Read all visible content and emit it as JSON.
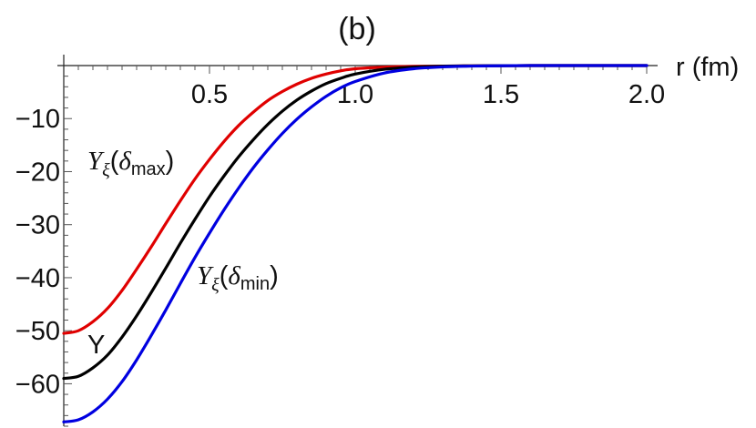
{
  "chart_data": {
    "type": "line",
    "title": "(b)",
    "xlabel": "r (fm)",
    "ylabel": "",
    "xlim": [
      0,
      2.0
    ],
    "ylim": [
      -68,
      0
    ],
    "x_ticks": [
      0.5,
      1.0,
      1.5,
      2.0
    ],
    "x_tick_labels": [
      "0.5",
      "1.0",
      "1.5",
      "2.0"
    ],
    "y_ticks": [
      -10,
      -20,
      -30,
      -40,
      -50,
      -60
    ],
    "y_tick_labels": [
      "−10",
      "−20",
      "−30",
      "−40",
      "−50",
      "−60"
    ],
    "grid": false,
    "legend": "none",
    "series": [
      {
        "name": "Yξ(δmax)",
        "color": "#e00000",
        "x": [
          0,
          0.05,
          0.1,
          0.15,
          0.2,
          0.25,
          0.3,
          0.35,
          0.4,
          0.45,
          0.5,
          0.55,
          0.6,
          0.65,
          0.7,
          0.75,
          0.8,
          0.85,
          0.9,
          0.95,
          1.0,
          1.1,
          1.2,
          1.3,
          1.4,
          1.5,
          1.6,
          1.7,
          1.8,
          1.9,
          2.0
        ],
        "y": [
          -50.5,
          -50.0,
          -48.3,
          -45.8,
          -42.4,
          -38.4,
          -34.2,
          -29.8,
          -25.5,
          -21.4,
          -17.7,
          -14.3,
          -11.3,
          -8.8,
          -6.6,
          -4.9,
          -3.5,
          -2.4,
          -1.6,
          -1.0,
          -0.6,
          -0.3,
          -0.15,
          -0.1,
          -0.05,
          -0.02,
          0,
          0,
          0,
          0,
          0
        ]
      },
      {
        "name": "Y",
        "color": "#000000",
        "x": [
          0,
          0.05,
          0.1,
          0.15,
          0.2,
          0.25,
          0.3,
          0.35,
          0.4,
          0.45,
          0.5,
          0.55,
          0.6,
          0.65,
          0.7,
          0.75,
          0.8,
          0.85,
          0.9,
          0.95,
          1.0,
          1.1,
          1.2,
          1.3,
          1.4,
          1.5,
          1.6,
          1.7,
          1.8,
          1.9,
          2.0
        ],
        "y": [
          -59.0,
          -58.6,
          -57.0,
          -54.6,
          -51.2,
          -47.2,
          -42.8,
          -38.2,
          -33.5,
          -29.0,
          -24.7,
          -20.8,
          -17.2,
          -14.0,
          -11.1,
          -8.6,
          -6.5,
          -4.8,
          -3.4,
          -2.4,
          -1.6,
          -0.7,
          -0.3,
          -0.12,
          -0.05,
          -0.02,
          0,
          0,
          0,
          0,
          0
        ]
      },
      {
        "name": "Yξ(δmin)",
        "color": "#0000e0",
        "x": [
          0,
          0.05,
          0.1,
          0.15,
          0.2,
          0.25,
          0.3,
          0.35,
          0.4,
          0.45,
          0.5,
          0.55,
          0.6,
          0.65,
          0.7,
          0.75,
          0.8,
          0.85,
          0.9,
          0.95,
          1.0,
          1.1,
          1.2,
          1.3,
          1.4,
          1.5,
          1.6,
          1.7,
          1.8,
          1.9,
          2.0
        ],
        "y": [
          -67.2,
          -66.8,
          -65.3,
          -62.9,
          -59.6,
          -55.5,
          -50.9,
          -46.1,
          -41.1,
          -36.2,
          -31.6,
          -27.2,
          -23.1,
          -19.3,
          -15.9,
          -12.8,
          -10.1,
          -7.8,
          -5.8,
          -4.2,
          -3.0,
          -1.4,
          -0.6,
          -0.25,
          -0.1,
          -0.04,
          0,
          0,
          0,
          0,
          0
        ]
      }
    ],
    "annotations": {
      "ymax_main": "Y",
      "ymax_sub_xi": "ξ",
      "ymax_paren_open": "(",
      "ymax_delta": "δ",
      "ymax_sub": "max",
      "ymax_paren_close": ")",
      "y_plain": "Y",
      "ymin_main": "Y",
      "ymin_sub_xi": "ξ",
      "ymin_paren_open": "(",
      "ymin_delta": "δ",
      "ymin_sub": "min",
      "ymin_paren_close": ")"
    }
  }
}
